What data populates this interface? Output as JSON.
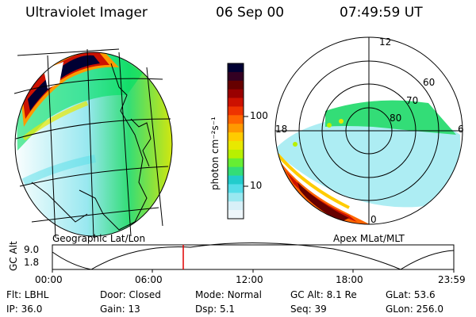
{
  "header": {
    "instrument": "Ultraviolet Imager",
    "date": "06 Sep 00",
    "time": "07:49:59 UT"
  },
  "colorbar": {
    "unit_label": "photon cm⁻²s⁻¹",
    "ticks": [
      "100",
      "10"
    ],
    "colors": [
      "#000033",
      "#330022",
      "#660000",
      "#990000",
      "#cc1100",
      "#ee3300",
      "#ff6600",
      "#ff9900",
      "#ffcc00",
      "#e8e800",
      "#b8f000",
      "#66ee33",
      "#33dd77",
      "#22cccc",
      "#55dde8",
      "#99e8f0",
      "#d8f0f8",
      "#eef6fa"
    ]
  },
  "left_panel": {
    "label": "Geographic Lat/Lon"
  },
  "right_panel": {
    "label": "Apex MLat/MLT",
    "mlt_labels": {
      "top": "12",
      "left": "18",
      "right": "6",
      "bottom": "0"
    },
    "mlat_labels": [
      "60",
      "70",
      "80"
    ]
  },
  "timeline": {
    "axis_label": "GC Alt",
    "y_ticks": [
      "9.0",
      "1.8"
    ],
    "x_ticks": [
      "00:00",
      "06:00",
      "12:00",
      "18:00",
      "23:59"
    ],
    "current_time_fraction": 0.326
  },
  "info": {
    "row1": [
      {
        "label": "Flt:",
        "value": "LBHL"
      },
      {
        "label": "Door:",
        "value": "Closed"
      },
      {
        "label": "Mode:",
        "value": "Normal"
      },
      {
        "label": "GC Alt:",
        "value": "8.1 Re"
      },
      {
        "label": "GLat:",
        "value": "53.6"
      }
    ],
    "row2": [
      {
        "label": "IP:",
        "value": "36.0"
      },
      {
        "label": "Gain:",
        "value": "13"
      },
      {
        "label": "Dsp:",
        "value": "5.1"
      },
      {
        "label": "Seq:",
        "value": "39"
      },
      {
        "label": "GLon:",
        "value": "256.0"
      }
    ]
  }
}
